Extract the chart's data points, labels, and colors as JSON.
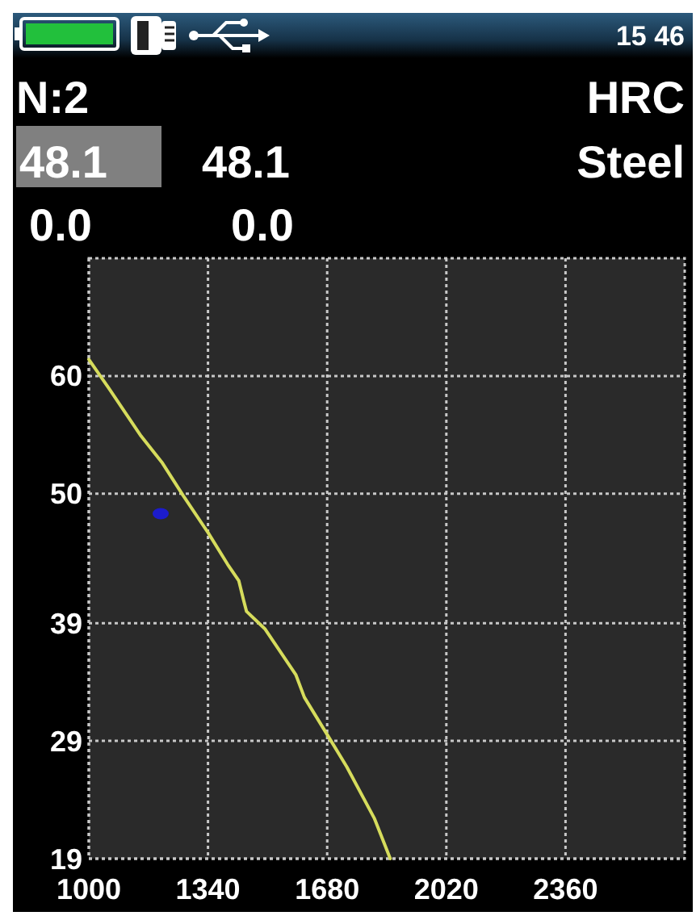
{
  "chart_data": {
    "type": "line",
    "xlim": [
      1000,
      2700
    ],
    "xticks": [
      1000,
      1340,
      1680,
      2020,
      2360
    ],
    "ylim": [
      19,
      70
    ],
    "yticks": [
      19,
      29,
      39,
      50,
      60
    ],
    "grid": true,
    "series": [
      {
        "color": "#d6dc5c",
        "x": [
          1000,
          1056,
          1149,
          1210,
          1270,
          1340,
          1396,
          1428,
          1442,
          1450,
          1503,
          1591,
          1615,
          1689,
          1736,
          1815,
          1860
        ],
        "values": [
          61.4,
          59.0,
          54.9,
          52.6,
          49.8,
          46.7,
          44.0,
          42.6,
          40.9,
          40.0,
          38.5,
          34.6,
          32.7,
          29.1,
          26.8,
          22.4,
          19.0
        ]
      },
      {
        "type": "scatter",
        "color": "#1c1ccc",
        "marker": "circle",
        "x": [
          1205
        ],
        "values": [
          48.3
        ]
      }
    ],
    "annotations": [
      "15 46",
      "N:2",
      "HRC",
      "48.1",
      "48.1",
      "Steel",
      "0.0",
      "0.0"
    ]
  }
}
